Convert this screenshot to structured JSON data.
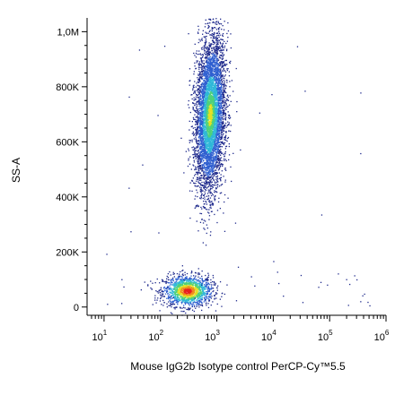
{
  "chart_data": {
    "type": "scatter",
    "subtype": "flow-cytometry-density-dot-plot",
    "title": "",
    "xlabel": "Mouse IgG2b Isotype control PerCP-Cy™5.5",
    "ylabel": "SS-A",
    "x_scale": "log",
    "xlim": [
      5,
      1000000
    ],
    "ylim": [
      -30000,
      1050000
    ],
    "x_ticks": [
      {
        "value": 10,
        "base": "10",
        "exp": "1"
      },
      {
        "value": 100,
        "base": "10",
        "exp": "2"
      },
      {
        "value": 1000,
        "base": "10",
        "exp": "3"
      },
      {
        "value": 10000,
        "base": "10",
        "exp": "4"
      },
      {
        "value": 100000,
        "base": "10",
        "exp": "5"
      },
      {
        "value": 1000000,
        "base": "10",
        "exp": "6"
      }
    ],
    "y_ticks": [
      {
        "value": 0,
        "label": "0"
      },
      {
        "value": 200000,
        "label": "200K"
      },
      {
        "value": 400000,
        "label": "400K"
      },
      {
        "value": 600000,
        "label": "600K"
      },
      {
        "value": 800000,
        "label": "800K"
      },
      {
        "value": 1000000,
        "label": "1,0M"
      }
    ],
    "grid": false,
    "legend": "none",
    "color_scale": [
      "#1f2a8c",
      "#2f5fd0",
      "#2fb7d8",
      "#4fd17a",
      "#e3e024",
      "#f08a1c",
      "#e81f1f"
    ],
    "populations": [
      {
        "center_x": 300,
        "center_y": 60000,
        "spread_log_x": 0.22,
        "spread_y": 28000,
        "events": 1500
      },
      {
        "center_x": 750,
        "center_y": 700000,
        "spread_log_x": 0.13,
        "spread_y": 140000,
        "events": 5200
      }
    ]
  }
}
